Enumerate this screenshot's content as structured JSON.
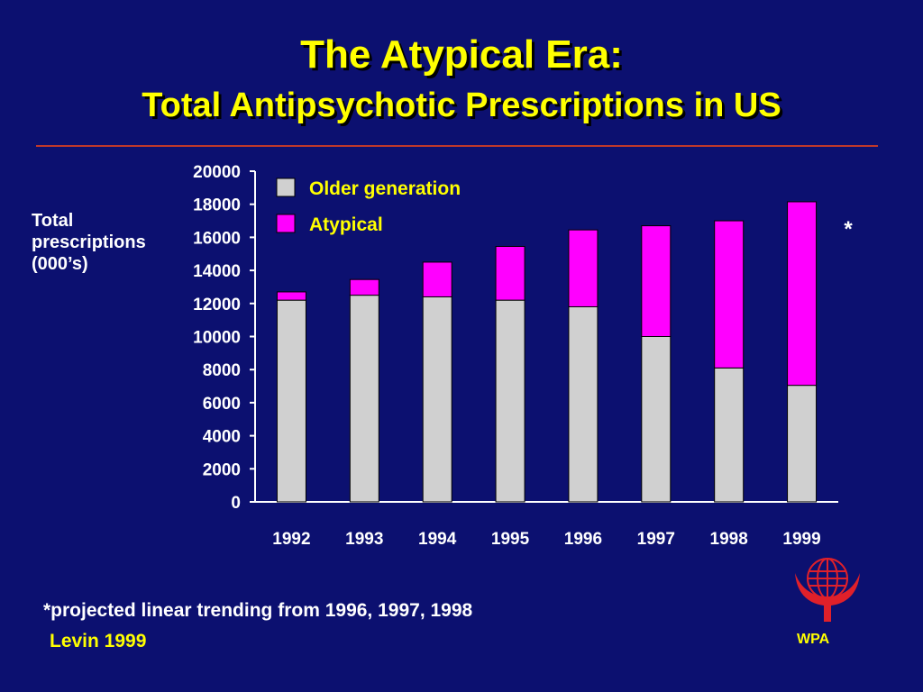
{
  "title_line1": "The Atypical Era:",
  "title_line2": "Total Antipsychotic Prescriptions in US",
  "footnote": "*projected linear trending from 1996, 1997, 1998",
  "source": "Levin 1999",
  "logo_text": "WPA",
  "logo_icon": "globe-hands-icon",
  "colors": {
    "background": "#0c1070",
    "title": "#ffff00",
    "older": "#d0d0d0",
    "atypical": "#ff00ff",
    "rule": "#c0392b"
  },
  "chart_data": {
    "type": "bar",
    "stacked": true,
    "categories": [
      "1992",
      "1993",
      "1994",
      "1995",
      "1996",
      "1997",
      "1998",
      "1999"
    ],
    "series": [
      {
        "name": "Older generation",
        "values": [
          12200,
          12500,
          12400,
          12200,
          11800,
          10000,
          8100,
          7050
        ]
      },
      {
        "name": "Atypical",
        "values": [
          500,
          950,
          2100,
          3250,
          4650,
          6700,
          8900,
          11100
        ]
      }
    ],
    "ylabel": [
      "Total",
      "prescriptions",
      "(000’s)"
    ],
    "ylim": [
      0,
      20000
    ],
    "yticks": [
      "0",
      "2000",
      "4000",
      "6000",
      "8000",
      "10000",
      "12000",
      "14000",
      "16000",
      "18000",
      "20000"
    ],
    "legend_position": "top-left",
    "grid": false,
    "annotation": "*"
  }
}
